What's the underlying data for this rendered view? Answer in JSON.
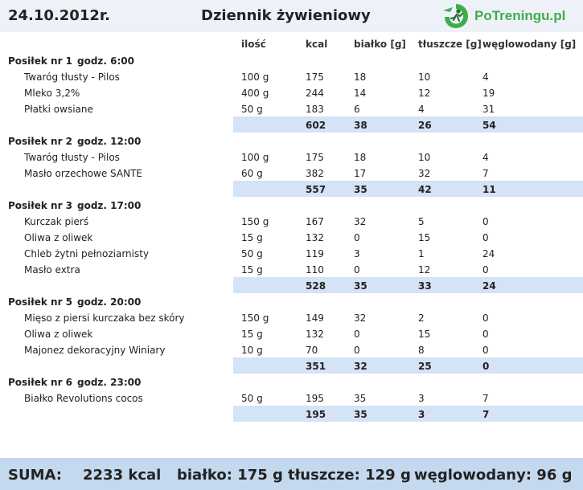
{
  "header": {
    "date": "24.10.2012r.",
    "title": "Dziennik żywieniowy",
    "logo_text_main": "PoTreningu",
    "logo_text_tld": ".pl",
    "logo_icon": "runner-logo-icon"
  },
  "columns": {
    "qty": "ilość",
    "kcal": "kcal",
    "protein": "białko [g]",
    "fat": "tłuszcze [g]",
    "carbs": "węglowodany [g]"
  },
  "meals": [
    {
      "label": "Posiłek nr 1",
      "time": "godz. 6:00",
      "items": [
        {
          "name": "Twaróg tłusty - Pilos",
          "qty": "100 g",
          "kcal": "175",
          "protein": "18",
          "fat": "10",
          "carbs": "4"
        },
        {
          "name": "Mleko  3,2%",
          "qty": "400 g",
          "kcal": "244",
          "protein": "14",
          "fat": "12",
          "carbs": "19"
        },
        {
          "name": "Płatki owsiane",
          "qty": "50 g",
          "kcal": "183",
          "protein": "6",
          "fat": "4",
          "carbs": "31"
        }
      ],
      "total": {
        "kcal": "602",
        "protein": "38",
        "fat": "26",
        "carbs": "54"
      }
    },
    {
      "label": "Posiłek nr 2",
      "time": "godz. 12:00",
      "items": [
        {
          "name": "Twaróg tłusty - Pilos",
          "qty": "100 g",
          "kcal": "175",
          "protein": "18",
          "fat": "10",
          "carbs": "4"
        },
        {
          "name": "Masło orzechowe SANTE",
          "qty": "60 g",
          "kcal": "382",
          "protein": "17",
          "fat": "32",
          "carbs": "7"
        }
      ],
      "total": {
        "kcal": "557",
        "protein": "35",
        "fat": "42",
        "carbs": "11"
      }
    },
    {
      "label": "Posiłek nr 3",
      "time": "godz. 17:00",
      "items": [
        {
          "name": "Kurczak pierś",
          "qty": "150 g",
          "kcal": "167",
          "protein": "32",
          "fat": "5",
          "carbs": "0"
        },
        {
          "name": "Oliwa z oliwek",
          "qty": "15 g",
          "kcal": "132",
          "protein": "0",
          "fat": "15",
          "carbs": "0"
        },
        {
          "name": "Chleb żytni pełnoziarnisty",
          "qty": "50 g",
          "kcal": "119",
          "protein": "3",
          "fat": "1",
          "carbs": "24"
        },
        {
          "name": "Masło extra",
          "qty": "15 g",
          "kcal": "110",
          "protein": "0",
          "fat": "12",
          "carbs": "0"
        }
      ],
      "total": {
        "kcal": "528",
        "protein": "35",
        "fat": "33",
        "carbs": "24"
      }
    },
    {
      "label": "Posiłek nr 5",
      "time": "godz. 20:00",
      "items": [
        {
          "name": "Mięso z piersi kurczaka bez skóry",
          "qty": "150 g",
          "kcal": "149",
          "protein": "32",
          "fat": "2",
          "carbs": "0"
        },
        {
          "name": "Oliwa z oliwek",
          "qty": "15 g",
          "kcal": "132",
          "protein": "0",
          "fat": "15",
          "carbs": "0"
        },
        {
          "name": "Majonez dekoracyjny Winiary",
          "qty": "10 g",
          "kcal": "70",
          "protein": "0",
          "fat": "8",
          "carbs": "0"
        }
      ],
      "total": {
        "kcal": "351",
        "protein": "32",
        "fat": "25",
        "carbs": "0"
      }
    },
    {
      "label": "Posiłek nr 6",
      "time": "godz. 23:00",
      "items": [
        {
          "name": "Białko Revolutions cocos",
          "qty": "50 g",
          "kcal": "195",
          "protein": "35",
          "fat": "3",
          "carbs": "7"
        }
      ],
      "total": {
        "kcal": "195",
        "protein": "35",
        "fat": "3",
        "carbs": "7"
      }
    }
  ],
  "summary": {
    "label": "SUMA:",
    "kcal": "2233 kcal",
    "protein": "białko: 175 g",
    "fat": "tłuszcze: 129 g",
    "carbs": "węglowodany: 96 g"
  },
  "colors": {
    "header_bg": "#eef2f8",
    "subtotal_bg": "#d4e3f5",
    "footer_bg": "#c4d8ee",
    "logo_green": "#3fae49"
  }
}
